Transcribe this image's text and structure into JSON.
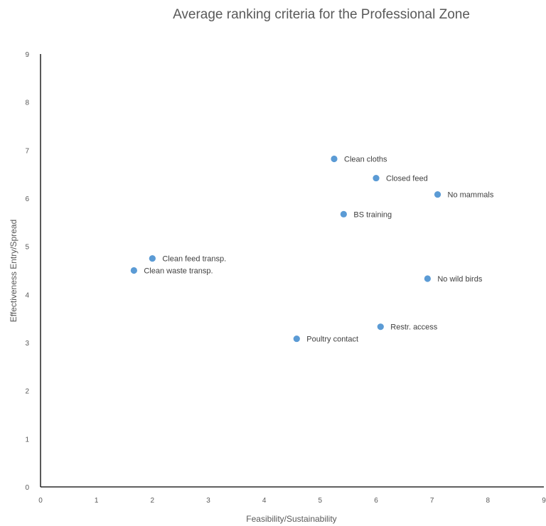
{
  "chart_data": {
    "type": "scatter",
    "title": "Average ranking criteria for the Professional Zone",
    "xlabel": "Feasibility/Sustainability",
    "ylabel": "Effectiveness Entry/Spread",
    "xlim": [
      0,
      9
    ],
    "ylim": [
      0,
      9
    ],
    "xticks": [
      "0",
      "1",
      "2",
      "3",
      "4",
      "5",
      "6",
      "7",
      "8",
      "9"
    ],
    "yticks": [
      "0",
      "1",
      "2",
      "3",
      "4",
      "5",
      "6",
      "7",
      "8",
      "9"
    ],
    "grid": false,
    "marker_color": "#5b9bd5",
    "points": [
      {
        "label": "Clean cloths",
        "x": 5.25,
        "y": 6.82
      },
      {
        "label": "Closed feed",
        "x": 6.0,
        "y": 6.42
      },
      {
        "label": "No mammals",
        "x": 7.1,
        "y": 6.08
      },
      {
        "label": "BS training",
        "x": 5.42,
        "y": 5.67
      },
      {
        "label": "Clean feed transp.",
        "x": 2.0,
        "y": 4.75
      },
      {
        "label": "Clean waste transp.",
        "x": 1.67,
        "y": 4.5
      },
      {
        "label": "No wild birds",
        "x": 6.92,
        "y": 4.33
      },
      {
        "label": "Restr. access",
        "x": 6.08,
        "y": 3.33
      },
      {
        "label": "Poultry contact",
        "x": 4.58,
        "y": 3.08
      }
    ]
  }
}
